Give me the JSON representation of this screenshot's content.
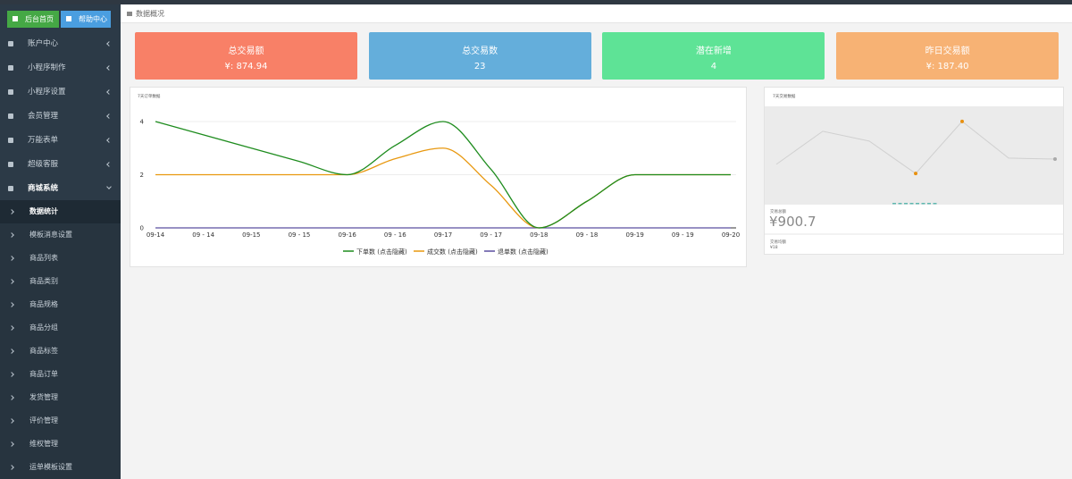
{
  "top_buttons": [
    "后台首页",
    "帮助中心"
  ],
  "menu": [
    "账户中心",
    "小程序制作",
    "小程序设置",
    "会员管理",
    "万能表单",
    "超级客服",
    "商城系统"
  ],
  "submenu": [
    "数据统计",
    "模板消息设置",
    "商品列表",
    "商品类别",
    "商品规格",
    "商品分组",
    "商品标签",
    "商品订单",
    "发货管理",
    "评价管理",
    "维权管理",
    "运单模板设置"
  ],
  "breadcrumb": "数据概况",
  "cards": [
    {
      "title": "总交易额",
      "value": "¥: 874.94",
      "color": "#f88067"
    },
    {
      "title": "总交易数",
      "value": "23",
      "color": "#64aedb"
    },
    {
      "title": "潜在新增",
      "value": "4",
      "color": "#5ee396"
    },
    {
      "title": "昨日交易额",
      "value": "¥: 187.40",
      "color": "#f7b274"
    }
  ],
  "summary": [
    {
      "label": "交易总额",
      "value": "¥900.7"
    },
    {
      "label": "交易均额",
      "value": "¥18"
    }
  ],
  "chart_data": [
    {
      "type": "line",
      "title": "7天订单数据",
      "smooth": true,
      "grid": true,
      "categories": [
        "09-14",
        "09 - 14",
        "09-15",
        "09 - 15",
        "09-16",
        "09 - 16",
        "09-17",
        "09 - 17",
        "09-18",
        "09 - 18",
        "09-19",
        "09 - 19",
        "09-20"
      ],
      "series": [
        {
          "name": "下单数 (点击隐藏)",
          "color": "#1e8c1e",
          "values": [
            4,
            3.5,
            3,
            2.5,
            2,
            3.1,
            4,
            2.2,
            0,
            1,
            2,
            2,
            2
          ]
        },
        {
          "name": "成交数 (点击隐藏)",
          "color": "#e8980f",
          "values": [
            2,
            2,
            2,
            2,
            2,
            2.6,
            3,
            1.6,
            0,
            1,
            2,
            2,
            2
          ]
        },
        {
          "name": "退单数 (点击隐藏)",
          "color": "#5a4fa0",
          "values": [
            0,
            0,
            0,
            0,
            0,
            0,
            0,
            0,
            0,
            0,
            0,
            0,
            0
          ]
        }
      ],
      "ylim": [
        0,
        4
      ],
      "yticks": [
        0,
        2,
        4
      ]
    },
    {
      "type": "line",
      "title": "7天交易数据",
      "color": "#d0d0d0",
      "values": [
        123,
        224,
        194,
        95,
        254,
        142,
        139
      ],
      "point_colors": [
        null,
        null,
        null,
        "#e8900f",
        "#e8900f",
        null,
        "#aaaaaa"
      ],
      "ylim": [
        0,
        300
      ]
    }
  ]
}
